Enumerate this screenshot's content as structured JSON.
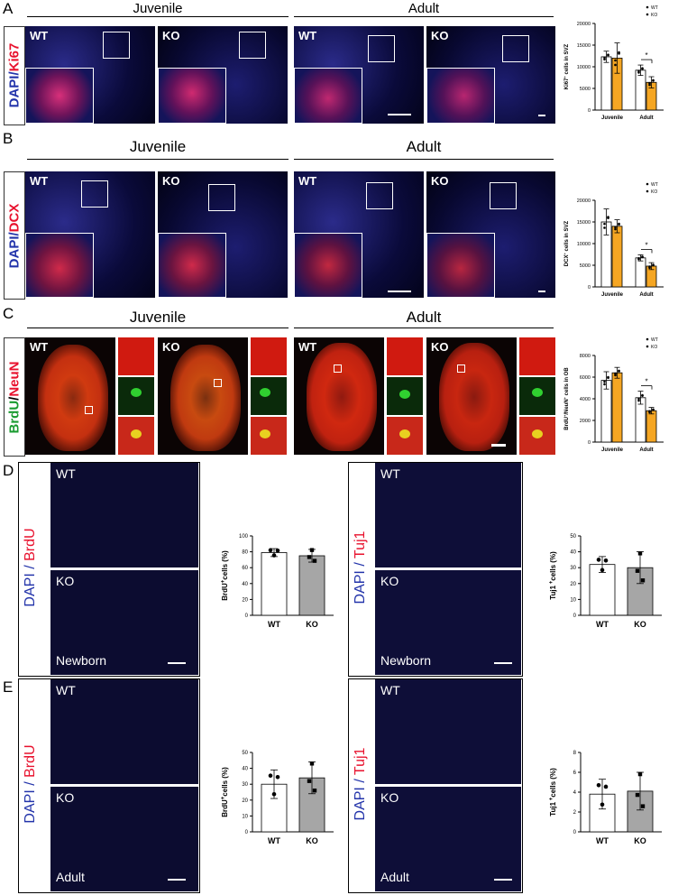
{
  "panel_letters": {
    "a": "A",
    "b": "B",
    "c": "C",
    "d": "D",
    "e": "E"
  },
  "groups": {
    "juvenile": "Juvenile",
    "adult": "Adult"
  },
  "geno": {
    "wt": "WT",
    "ko": "KO"
  },
  "row_labels": {
    "a_dapi": "DAPI/",
    "a_marker": "Ki67",
    "b_dapi": "DAPI/",
    "b_marker": "DCX",
    "c_m1": "BrdU",
    "c_sep": "/",
    "c_m2": "NeuN",
    "d_left_dapi": "DAPI / ",
    "d_left_marker": "BrdU",
    "d_right_dapi": "DAPI / ",
    "d_right_marker": "Tuj1",
    "e_left_dapi": "DAPI / ",
    "e_left_marker": "BrdU",
    "e_right_dapi": "DAPI / ",
    "e_right_marker": "Tuj1"
  },
  "stage_labels": {
    "newborn": "Newborn",
    "adult": "Adult"
  },
  "colors": {
    "wt_bar": "#ffffff",
    "ko_bar_abc": "#f5a623",
    "ko_bar_de": "#a6a6a6",
    "red": "#e8112d",
    "green": "#1a9b30",
    "blue": "#2233aa"
  },
  "chart_data": [
    {
      "id": "A",
      "type": "bar",
      "ylabel_main": "Ki67",
      "ylabel_rest": " cells in SVZ",
      "ylabel_sup": "+",
      "categories": [
        "Juvenile",
        "Adult"
      ],
      "ylim": [
        0,
        20000
      ],
      "yticks": [
        "0",
        "5000",
        "10000",
        "15000",
        "20000"
      ],
      "ytick_values": [
        0,
        5000,
        10000,
        15000,
        20000
      ],
      "series": [
        {
          "name": "WT",
          "values": [
            12300,
            9200
          ],
          "err": [
            1300,
            1200
          ]
        },
        {
          "name": "KO",
          "values": [
            12000,
            6400
          ],
          "err": [
            3500,
            1300
          ]
        }
      ],
      "significance": [
        {
          "category": "Adult",
          "label": "*"
        }
      ],
      "legend_position": "top-right"
    },
    {
      "id": "B",
      "type": "bar",
      "ylabel_main": "DCX",
      "ylabel_rest": " cells in SVZ",
      "ylabel_sup": "+",
      "categories": [
        "Juvenile",
        "Adult"
      ],
      "ylim": [
        0,
        20000
      ],
      "yticks": [
        "0",
        "5000",
        "10000",
        "15000",
        "20000"
      ],
      "ytick_values": [
        0,
        5000,
        10000,
        15000,
        20000
      ],
      "series": [
        {
          "name": "WT",
          "values": [
            15000,
            6700
          ],
          "err": [
            3000,
            700
          ]
        },
        {
          "name": "KO",
          "values": [
            14000,
            4800
          ],
          "err": [
            1500,
            800
          ]
        }
      ],
      "significance": [
        {
          "category": "Adult",
          "label": "*"
        }
      ],
      "legend_position": "top-right"
    },
    {
      "id": "C",
      "type": "bar",
      "ylabel_main": "BrdU",
      "ylabel_rest": "NeuN",
      "ylabel_sup": "+",
      "ylabel_tail": " cells in OB",
      "categories": [
        "Juvenile",
        "Adult"
      ],
      "ylim": [
        0,
        8000
      ],
      "yticks": [
        "0",
        "2000",
        "4000",
        "6000",
        "8000"
      ],
      "ytick_values": [
        0,
        2000,
        4000,
        6000,
        8000
      ],
      "series": [
        {
          "name": "WT",
          "values": [
            5700,
            4100
          ],
          "err": [
            800,
            600
          ]
        },
        {
          "name": "KO",
          "values": [
            6400,
            2900
          ],
          "err": [
            500,
            300
          ]
        }
      ],
      "significance": [
        {
          "category": "Adult",
          "label": "*"
        }
      ],
      "legend_position": "top-right"
    },
    {
      "id": "D1",
      "type": "bar",
      "ylabel_main": "BrdU",
      "ylabel_sup": "+",
      "ylabel_rest": "cells (%)",
      "categories": [
        "WT",
        "KO"
      ],
      "ylim": [
        0,
        100
      ],
      "yticks": [
        "0",
        "20",
        "40",
        "60",
        "80",
        "100"
      ],
      "ytick_values": [
        0,
        20,
        40,
        60,
        80,
        100
      ],
      "values": [
        79,
        75
      ],
      "err": [
        5,
        8
      ]
    },
    {
      "id": "D2",
      "type": "bar",
      "ylabel_main": "Tuj1",
      "ylabel_sup": " +",
      "ylabel_rest": "cells (%)",
      "categories": [
        "WT",
        "KO"
      ],
      "ylim": [
        0,
        50
      ],
      "yticks": [
        "0",
        "10",
        "20",
        "30",
        "40",
        "50"
      ],
      "ytick_values": [
        0,
        10,
        20,
        30,
        40,
        50
      ],
      "values": [
        32,
        30
      ],
      "err": [
        5,
        10
      ]
    },
    {
      "id": "E1",
      "type": "bar",
      "ylabel_main": "BrdU",
      "ylabel_sup": "+",
      "ylabel_rest": "cells (%)",
      "categories": [
        "WT",
        "KO"
      ],
      "ylim": [
        0,
        50
      ],
      "yticks": [
        "0",
        "10",
        "20",
        "30",
        "40",
        "50"
      ],
      "ytick_values": [
        0,
        10,
        20,
        30,
        40,
        50
      ],
      "values": [
        30,
        34
      ],
      "err": [
        9,
        10
      ]
    },
    {
      "id": "E2",
      "type": "bar",
      "ylabel_main": "Tuj1",
      "ylabel_sup": " +",
      "ylabel_rest": "cells (%)",
      "categories": [
        "WT",
        "KO"
      ],
      "ylim": [
        0,
        8
      ],
      "yticks": [
        "0",
        "2",
        "4",
        "6",
        "8"
      ],
      "ytick_values": [
        0,
        2,
        4,
        6,
        8
      ],
      "values": [
        3.8,
        4.1
      ],
      "err": [
        1.5,
        1.9
      ]
    }
  ]
}
